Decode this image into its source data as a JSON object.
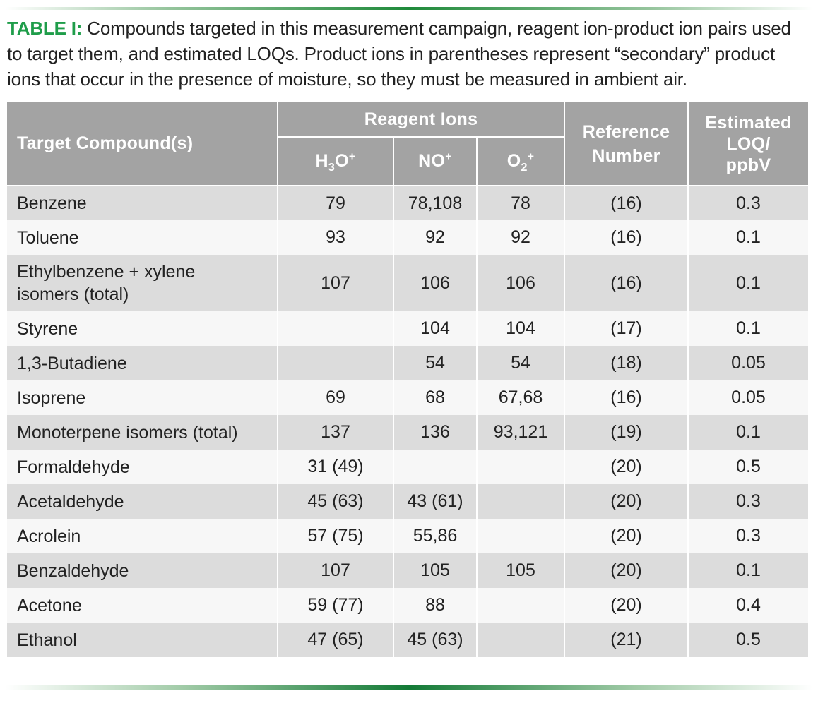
{
  "caption": {
    "label": "TABLE I:",
    "text": "Compounds targeted in this measurement campaign, reagent ion-product ion pairs used to target them, and estimated LOQs. Product ions in parentheses represent “secondary” product ions that occur in the presence of moisture, so they must be measured in ambient air."
  },
  "table": {
    "headers": {
      "compound": "Target Compound(s)",
      "reagent_group": "Reagent Ions",
      "h3o_base": "H",
      "h3o_sub": "3",
      "h3o_rest": "O",
      "h3o_sup": "+",
      "no_base": "NO",
      "no_sup": "+",
      "o2_base": "O",
      "o2_sub": "2",
      "o2_sup": "+",
      "reference": "Reference Number",
      "loq_line1": "Estimated",
      "loq_line2": "LOQ/",
      "loq_line3": "ppbV"
    },
    "rows": [
      {
        "compound": "Benzene",
        "h3o": "79",
        "no": "78,108",
        "o2": "78",
        "ref": "(16)",
        "loq": "0.3"
      },
      {
        "compound": "Toluene",
        "h3o": "93",
        "no": "92",
        "o2": "92",
        "ref": "(16)",
        "loq": "0.1"
      },
      {
        "compound_line1": "Ethylbenzene + xylene",
        "compound_line2": "isomers (total)",
        "h3o": "107",
        "no": "106",
        "o2": "106",
        "ref": "(16)",
        "loq": "0.1"
      },
      {
        "compound": "Styrene",
        "h3o": "",
        "no": "104",
        "o2": "104",
        "ref": "(17)",
        "loq": "0.1"
      },
      {
        "compound": "1,3-Butadiene",
        "h3o": "",
        "no": "54",
        "o2": "54",
        "ref": "(18)",
        "loq": "0.05"
      },
      {
        "compound": "Isoprene",
        "h3o": "69",
        "no": "68",
        "o2": "67,68",
        "ref": "(16)",
        "loq": "0.05"
      },
      {
        "compound": "Monoterpene isomers (total)",
        "h3o": "137",
        "no": "136",
        "o2": "93,121",
        "ref": "(19)",
        "loq": "0.1"
      },
      {
        "compound": "Formaldehyde",
        "h3o": "31 (49)",
        "no": "",
        "o2": "",
        "ref": "(20)",
        "loq": "0.5"
      },
      {
        "compound": "Acetaldehyde",
        "h3o": "45 (63)",
        "no": "43 (61)",
        "o2": "",
        "ref": "(20)",
        "loq": "0.3"
      },
      {
        "compound": "Acrolein",
        "h3o": "57 (75)",
        "no": "55,86",
        "o2": "",
        "ref": "(20)",
        "loq": "0.3"
      },
      {
        "compound": "Benzaldehyde",
        "h3o": "107",
        "no": "105",
        "o2": "105",
        "ref": "(20)",
        "loq": "0.1"
      },
      {
        "compound": "Acetone",
        "h3o": "59 (77)",
        "no": "88",
        "o2": "",
        "ref": "(20)",
        "loq": "0.4"
      },
      {
        "compound": "Ethanol",
        "h3o": "47 (65)",
        "no": "45 (63)",
        "o2": "",
        "ref": "(21)",
        "loq": "0.5"
      }
    ]
  },
  "colors": {
    "accent_green": "#1f9d4a",
    "header_gray": "#a3a3a3",
    "row_shade": "#dcdcdc",
    "row_plain": "#f7f7f7"
  }
}
